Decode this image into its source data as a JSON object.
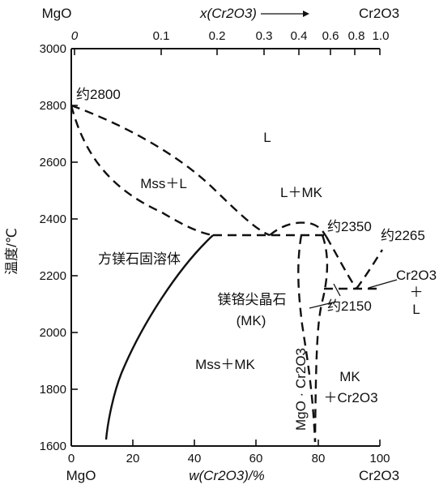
{
  "axes": {
    "bottom_left_end": "MgO",
    "bottom_right_end": "Cr2O3",
    "bottom_title": "w(Cr2O3)/%",
    "top_left_end": "MgO",
    "top_right_end": "Cr2O3",
    "top_title": "x(Cr2O3)",
    "left_title": "温度/℃",
    "x_ticks": [
      "0",
      "20",
      "40",
      "60",
      "80",
      "100"
    ],
    "y_ticks": [
      "1600",
      "1800",
      "2000",
      "2200",
      "2400",
      "2600",
      "2800",
      "3000"
    ],
    "top_ticks": [
      "0",
      "0.1",
      "0.2",
      "0.3",
      "0.4",
      "0.6",
      "0.8",
      "1.0"
    ]
  },
  "regions": {
    "liquid": "L",
    "mss_l": "Mss＋L",
    "periclase": "方镁石固溶体",
    "l_mk": "L＋MK",
    "spinel_line1": "镁铬尖晶石",
    "spinel_line2": "(MK)",
    "mss_mk": "Mss＋MK",
    "mk_cr_line1": "MK",
    "mk_cr_line2": "＋Cr2O3",
    "cr_l_line1": "Cr2O3",
    "cr_l_line2": "＋",
    "cr_l_line3": "L",
    "compound": "MgO · Cr2O3"
  },
  "annotations": {
    "t2800": "约2800",
    "t2350": "约2350",
    "t2265": "约2265",
    "t2150": "约2150"
  },
  "chart_data": {
    "type": "phase-diagram",
    "x_axis": {
      "unit": "w(Cr2O3)/%",
      "range": [
        0,
        100
      ]
    },
    "y_axis": {
      "unit": "温度/℃",
      "range": [
        1600,
        3000
      ]
    },
    "top_axis_mole_fraction_ticks": [
      0,
      0.1,
      0.2,
      0.3,
      0.4,
      0.6,
      0.8,
      1.0
    ],
    "liquidus_mgo_side": [
      [
        0,
        2800
      ],
      [
        15,
        2690
      ],
      [
        30,
        2555
      ],
      [
        42,
        2420
      ],
      [
        55,
        2345
      ],
      [
        64,
        2340
      ]
    ],
    "solidus_mgo_side": [
      [
        0,
        2800
      ],
      [
        6,
        2600
      ],
      [
        20,
        2420
      ],
      [
        38,
        2348
      ],
      [
        45,
        2340
      ]
    ],
    "periclase_solvus": [
      [
        45,
        2340
      ],
      [
        38,
        2220
      ],
      [
        30,
        2060
      ],
      [
        22,
        1860
      ],
      [
        11,
        1620
      ]
    ],
    "eutectic_mgo_mk": {
      "w": [
        45,
        82
      ],
      "T": 2340
    },
    "mk_liquidus_dome": [
      [
        64,
        2340
      ],
      [
        72,
        2378
      ],
      [
        78,
        2365
      ],
      [
        80,
        2350
      ],
      [
        84,
        2300
      ],
      [
        88,
        2230
      ],
      [
        92,
        2160
      ]
    ],
    "eutectic_mk_cr2o3": {
      "w": [
        81,
        100
      ],
      "T": 2150
    },
    "cr2o3_liquidus": [
      [
        92,
        2160
      ],
      [
        100,
        2285
      ]
    ],
    "mk_phase_boundaries": [
      [
        [
          72,
          2345
        ],
        [
          72,
          2200
        ],
        [
          75,
          2050
        ],
        [
          78,
          1900
        ],
        [
          79,
          1620
        ]
      ],
      [
        [
          82,
          2345
        ],
        [
          83,
          2200
        ],
        [
          80,
          2050
        ],
        [
          79.5,
          1620
        ]
      ]
    ],
    "points": [
      {
        "label": "约2800",
        "w": 0,
        "T": 2800
      },
      {
        "label": "约2350",
        "w": 79,
        "T": 2355
      },
      {
        "label": "约2265",
        "w": 99,
        "T": 2265
      },
      {
        "label": "约2150",
        "w": 82,
        "T": 2150
      }
    ]
  }
}
